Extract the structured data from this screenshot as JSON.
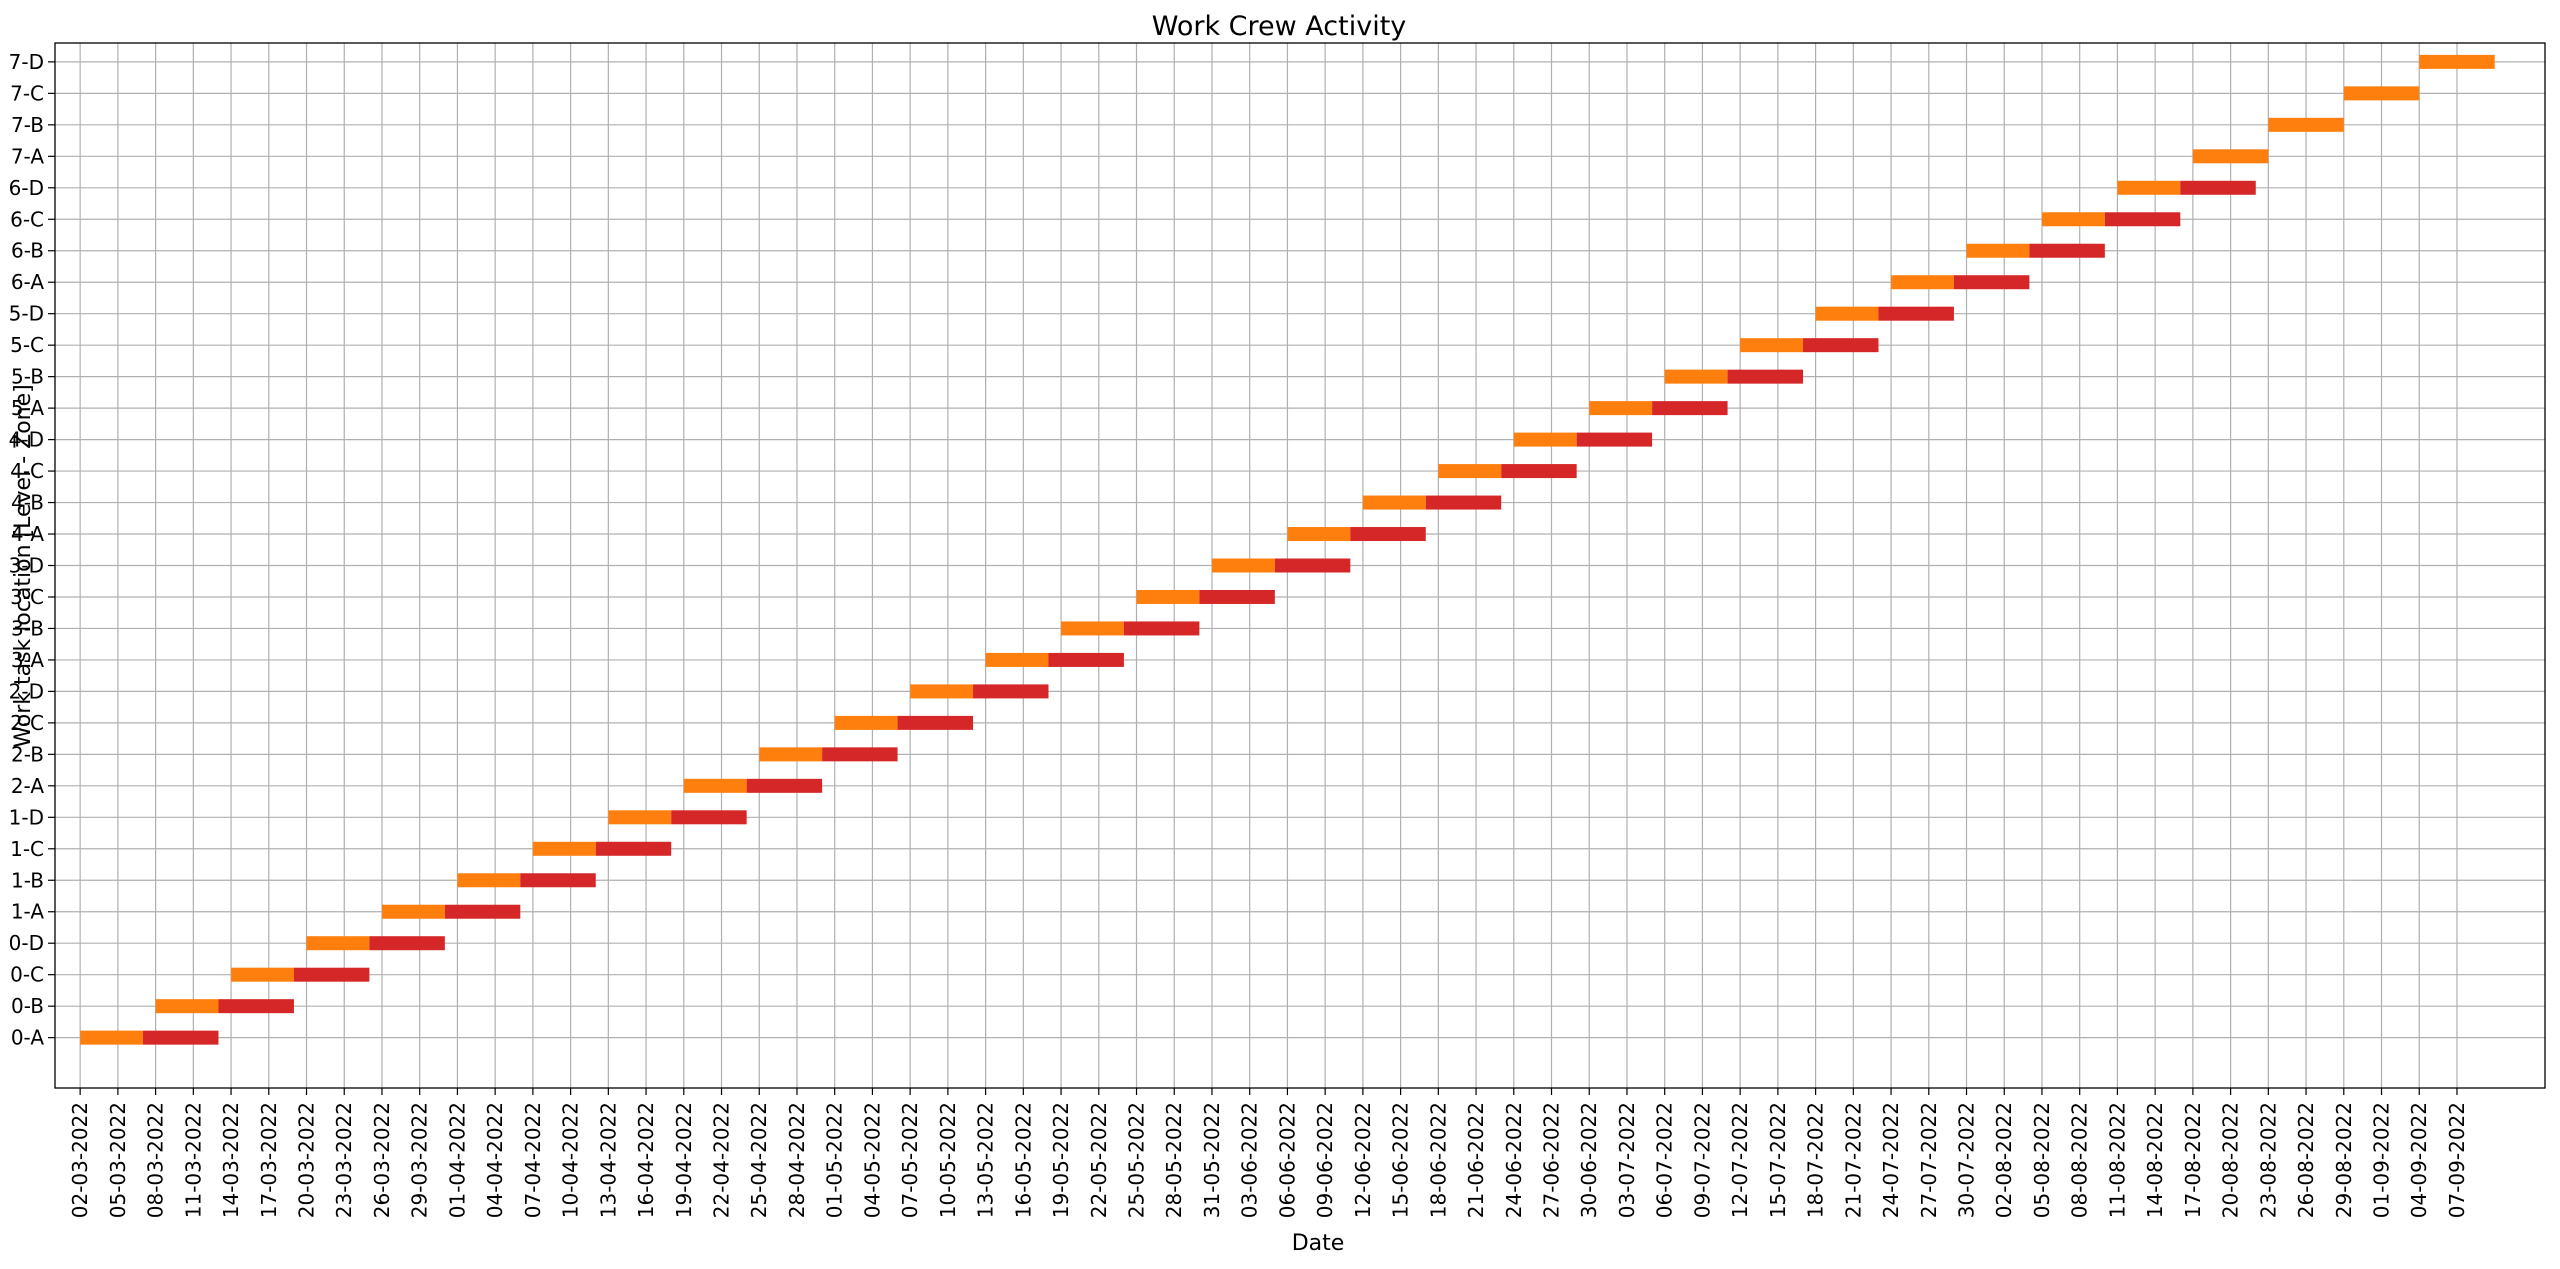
{
  "chart_data": {
    "type": "gantt",
    "title": "Work Crew Activity",
    "xlabel": "Date",
    "ylabel": "Work task location [Level - Zone]",
    "grid": true,
    "xlim": [
      "2022-02-28",
      "2022-09-14"
    ],
    "x_tick_start": "2022-03-02",
    "x_tick_end": "2022-09-07",
    "x_tick_step_days": 3,
    "x_tick_format": "DD-MM-YYYY",
    "categories": [
      "0-A",
      "0-B",
      "0-C",
      "0-D",
      "1-A",
      "1-B",
      "1-C",
      "1-D",
      "2-A",
      "2-B",
      "2-C",
      "2-D",
      "3-A",
      "3-B",
      "3-C",
      "3-D",
      "4-A",
      "4-B",
      "4-C",
      "4-D",
      "5-A",
      "5-B",
      "5-C",
      "5-D",
      "6-A",
      "6-B",
      "6-C",
      "6-D",
      "7-A",
      "7-B",
      "7-C",
      "7-D"
    ],
    "series": [
      {
        "color": "#ff7f0e",
        "tasks": [
          {
            "location": "0-A",
            "start": "2022-03-02",
            "end": "2022-03-07"
          },
          {
            "location": "0-B",
            "start": "2022-03-08",
            "end": "2022-03-13"
          },
          {
            "location": "0-C",
            "start": "2022-03-14",
            "end": "2022-03-19"
          },
          {
            "location": "0-D",
            "start": "2022-03-20",
            "end": "2022-03-25"
          },
          {
            "location": "1-A",
            "start": "2022-03-26",
            "end": "2022-03-31"
          },
          {
            "location": "1-B",
            "start": "2022-04-01",
            "end": "2022-04-06"
          },
          {
            "location": "1-C",
            "start": "2022-04-07",
            "end": "2022-04-12"
          },
          {
            "location": "1-D",
            "start": "2022-04-13",
            "end": "2022-04-18"
          },
          {
            "location": "2-A",
            "start": "2022-04-19",
            "end": "2022-04-24"
          },
          {
            "location": "2-B",
            "start": "2022-04-25",
            "end": "2022-04-30"
          },
          {
            "location": "2-C",
            "start": "2022-05-01",
            "end": "2022-05-06"
          },
          {
            "location": "2-D",
            "start": "2022-05-07",
            "end": "2022-05-12"
          },
          {
            "location": "3-A",
            "start": "2022-05-13",
            "end": "2022-05-18"
          },
          {
            "location": "3-B",
            "start": "2022-05-19",
            "end": "2022-05-24"
          },
          {
            "location": "3-C",
            "start": "2022-05-25",
            "end": "2022-05-30"
          },
          {
            "location": "3-D",
            "start": "2022-05-31",
            "end": "2022-06-05"
          },
          {
            "location": "4-A",
            "start": "2022-06-06",
            "end": "2022-06-11"
          },
          {
            "location": "4-B",
            "start": "2022-06-12",
            "end": "2022-06-17"
          },
          {
            "location": "4-C",
            "start": "2022-06-18",
            "end": "2022-06-23"
          },
          {
            "location": "4-D",
            "start": "2022-06-24",
            "end": "2022-06-29"
          },
          {
            "location": "5-A",
            "start": "2022-06-30",
            "end": "2022-07-05"
          },
          {
            "location": "5-B",
            "start": "2022-07-06",
            "end": "2022-07-11"
          },
          {
            "location": "5-C",
            "start": "2022-07-12",
            "end": "2022-07-17"
          },
          {
            "location": "5-D",
            "start": "2022-07-18",
            "end": "2022-07-23"
          },
          {
            "location": "6-A",
            "start": "2022-07-24",
            "end": "2022-07-29"
          },
          {
            "location": "6-B",
            "start": "2022-07-30",
            "end": "2022-08-04"
          },
          {
            "location": "6-C",
            "start": "2022-08-05",
            "end": "2022-08-10"
          },
          {
            "location": "6-D",
            "start": "2022-08-11",
            "end": "2022-08-16"
          },
          {
            "location": "7-A",
            "start": "2022-08-17",
            "end": "2022-08-23"
          },
          {
            "location": "7-B",
            "start": "2022-08-23",
            "end": "2022-08-29"
          },
          {
            "location": "7-C",
            "start": "2022-08-29",
            "end": "2022-09-04"
          },
          {
            "location": "7-D",
            "start": "2022-09-04",
            "end": "2022-09-10"
          }
        ]
      },
      {
        "color": "#d62728",
        "tasks": [
          {
            "location": "0-A",
            "start": "2022-03-07",
            "end": "2022-03-13"
          },
          {
            "location": "0-B",
            "start": "2022-03-13",
            "end": "2022-03-19"
          },
          {
            "location": "0-C",
            "start": "2022-03-19",
            "end": "2022-03-25"
          },
          {
            "location": "0-D",
            "start": "2022-03-25",
            "end": "2022-03-31"
          },
          {
            "location": "1-A",
            "start": "2022-03-31",
            "end": "2022-04-06"
          },
          {
            "location": "1-B",
            "start": "2022-04-06",
            "end": "2022-04-12"
          },
          {
            "location": "1-C",
            "start": "2022-04-12",
            "end": "2022-04-18"
          },
          {
            "location": "1-D",
            "start": "2022-04-18",
            "end": "2022-04-24"
          },
          {
            "location": "2-A",
            "start": "2022-04-24",
            "end": "2022-04-30"
          },
          {
            "location": "2-B",
            "start": "2022-04-30",
            "end": "2022-05-06"
          },
          {
            "location": "2-C",
            "start": "2022-05-06",
            "end": "2022-05-12"
          },
          {
            "location": "2-D",
            "start": "2022-05-12",
            "end": "2022-05-18"
          },
          {
            "location": "3-A",
            "start": "2022-05-18",
            "end": "2022-05-24"
          },
          {
            "location": "3-B",
            "start": "2022-05-24",
            "end": "2022-05-30"
          },
          {
            "location": "3-C",
            "start": "2022-05-30",
            "end": "2022-06-05"
          },
          {
            "location": "3-D",
            "start": "2022-06-05",
            "end": "2022-06-11"
          },
          {
            "location": "4-A",
            "start": "2022-06-11",
            "end": "2022-06-17"
          },
          {
            "location": "4-B",
            "start": "2022-06-17",
            "end": "2022-06-23"
          },
          {
            "location": "4-C",
            "start": "2022-06-23",
            "end": "2022-06-29"
          },
          {
            "location": "4-D",
            "start": "2022-06-29",
            "end": "2022-07-05"
          },
          {
            "location": "5-A",
            "start": "2022-07-05",
            "end": "2022-07-11"
          },
          {
            "location": "5-B",
            "start": "2022-07-11",
            "end": "2022-07-17"
          },
          {
            "location": "5-C",
            "start": "2022-07-17",
            "end": "2022-07-23"
          },
          {
            "location": "5-D",
            "start": "2022-07-23",
            "end": "2022-07-29"
          },
          {
            "location": "6-A",
            "start": "2022-07-29",
            "end": "2022-08-04"
          },
          {
            "location": "6-B",
            "start": "2022-08-04",
            "end": "2022-08-10"
          },
          {
            "location": "6-C",
            "start": "2022-08-10",
            "end": "2022-08-16"
          },
          {
            "location": "6-D",
            "start": "2022-08-16",
            "end": "2022-08-22"
          }
        ]
      }
    ]
  }
}
